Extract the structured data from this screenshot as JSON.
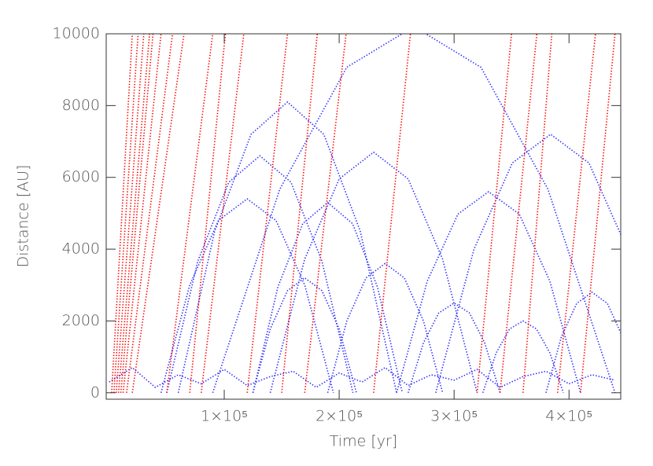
{
  "chart_data": {
    "type": "line",
    "xlabel": "Time [yr]",
    "ylabel": "Distance [AU]",
    "xlim": [
      -2700,
      445000
    ],
    "ylim": [
      -180,
      10000
    ],
    "xticks": [
      {
        "value": 100000,
        "label": "1×10⁵"
      },
      {
        "value": 200000,
        "label": "2×10⁵"
      },
      {
        "value": 300000,
        "label": "3×10⁵"
      },
      {
        "value": 400000,
        "label": "4×10⁵"
      }
    ],
    "yticks": [
      0,
      2000,
      4000,
      6000,
      8000,
      10000
    ],
    "series": [
      {
        "color": "#2a2aff",
        "x": [
          0,
          20000,
          40000,
          60000,
          80000,
          100000,
          120000,
          140000,
          160000,
          180000,
          200000,
          220000,
          240000,
          260000,
          280000,
          300000,
          320000,
          340000,
          360000,
          380000,
          400000,
          420000,
          440000
        ],
        "values": [
          300,
          700,
          150,
          500,
          250,
          650,
          200,
          450,
          600,
          150,
          550,
          300,
          700,
          200,
          500,
          350,
          650,
          150,
          450,
          600,
          250,
          500,
          350
        ]
      },
      {
        "color": "#2a2aff",
        "x": [
          60000,
          91667,
          123333,
          155000,
          186667,
          218333,
          250000
        ],
        "values": [
          0,
          4500,
          7200,
          8100,
          7200,
          4500,
          0
        ]
      },
      {
        "color": "#2a2aff",
        "x": [
          50000,
          77000,
          104000,
          131000,
          158000,
          185000,
          212000
        ],
        "values": [
          0,
          3667,
          5867,
          6600,
          5867,
          3667,
          0
        ]
      },
      {
        "color": "#2a2aff",
        "x": [
          140000,
          170000,
          200000,
          230000,
          260000,
          290000,
          320000
        ],
        "values": [
          0,
          3722,
          5956,
          6700,
          5956,
          3722,
          0
        ]
      },
      {
        "color": "#2a2aff",
        "x": [
          284000,
          317333,
          350667,
          384000,
          417333,
          450667,
          484000
        ],
        "values": [
          0,
          4000,
          6400,
          7200,
          6400,
          4000,
          0
        ]
      },
      {
        "color": "#2a2aff",
        "x": [
          250000,
          276667,
          303333,
          330000,
          356667,
          383333,
          410000
        ],
        "values": [
          0,
          3111,
          4978,
          5600,
          4978,
          3111,
          0
        ]
      },
      {
        "color": "#2a2aff",
        "x": [
          90000,
          148333,
          206667,
          265000,
          323333,
          381667,
          440000
        ],
        "values": [
          0,
          5667,
          9067,
          10200,
          9067,
          5667,
          0
        ]
      },
      {
        "color": "#2a2aff",
        "x": [
          125000,
          146667,
          168333,
          190000,
          211667,
          233333,
          255000
        ],
        "values": [
          0,
          2944,
          4711,
          5300,
          4711,
          2944,
          0
        ]
      },
      {
        "color": "#2a2aff",
        "x": [
          45000,
          70000,
          95000,
          120000,
          145000,
          170000,
          195000
        ],
        "values": [
          0,
          3000,
          4800,
          5400,
          4800,
          3000,
          0
        ]
      },
      {
        "color": "#2a2aff",
        "x": [
          260000,
          273333,
          286667,
          300000,
          313333,
          326667,
          340000
        ],
        "values": [
          0,
          1389,
          2222,
          2500,
          2222,
          1389,
          0
        ]
      },
      {
        "color": "#2a2aff",
        "x": [
          380000,
          393333,
          406667,
          420000,
          433333,
          446667,
          460000
        ],
        "values": [
          0,
          1556,
          2489,
          2800,
          2489,
          1556,
          0
        ]
      },
      {
        "color": "#2a2aff",
        "x": [
          125000,
          140000,
          155000,
          170000,
          185000,
          200000,
          215000
        ],
        "values": [
          0,
          1778,
          2844,
          3200,
          2844,
          1778,
          0
        ]
      },
      {
        "color": "#2a2aff",
        "x": [
          325000,
          336667,
          348333,
          360000,
          371667,
          383333,
          395000
        ],
        "values": [
          0,
          1111,
          1778,
          2000,
          1778,
          1111,
          0
        ]
      },
      {
        "color": "#2a2aff",
        "x": [
          190000,
          206667,
          223333,
          240000,
          256667,
          273333,
          290000
        ],
        "values": [
          0,
          2000,
          3200,
          3600,
          3200,
          2000,
          0
        ]
      },
      {
        "color": "#ff0000",
        "x": [
          2000,
          20000
        ],
        "values": [
          0,
          10000
        ]
      },
      {
        "color": "#ff0000",
        "x": [
          4000,
          25000
        ],
        "values": [
          0,
          10000
        ]
      },
      {
        "color": "#ff0000",
        "x": [
          6000,
          30000
        ],
        "values": [
          0,
          10000
        ]
      },
      {
        "color": "#ff0000",
        "x": [
          8000,
          35000
        ],
        "values": [
          0,
          10000
        ]
      },
      {
        "color": "#ff0000",
        "x": [
          10000,
          38000
        ],
        "values": [
          0,
          10000
        ]
      },
      {
        "color": "#ff0000",
        "x": [
          12000,
          45000
        ],
        "values": [
          0,
          10000
        ]
      },
      {
        "color": "#ff0000",
        "x": [
          15000,
          55000
        ],
        "values": [
          0,
          10000
        ]
      },
      {
        "color": "#ff0000",
        "x": [
          20000,
          65000
        ],
        "values": [
          0,
          10000
        ]
      },
      {
        "color": "#ff0000",
        "x": [
          50000,
          90000
        ],
        "values": [
          0,
          10000
        ]
      },
      {
        "color": "#ff0000",
        "x": [
          70000,
          101000
        ],
        "values": [
          0,
          10000
        ]
      },
      {
        "color": "#ff0000",
        "x": [
          80000,
          117000
        ],
        "values": [
          0,
          10000
        ]
      },
      {
        "color": "#ff0000",
        "x": [
          120000,
          155000
        ],
        "values": [
          0,
          10000
        ]
      },
      {
        "color": "#ff0000",
        "x": [
          150000,
          181000
        ],
        "values": [
          0,
          10000
        ]
      },
      {
        "color": "#ff0000",
        "x": [
          170000,
          206000
        ],
        "values": [
          0,
          10000
        ]
      },
      {
        "color": "#ff0000",
        "x": [
          230000,
          262000
        ],
        "values": [
          0,
          10000
        ]
      },
      {
        "color": "#ff0000",
        "x": [
          320000,
          350000
        ],
        "values": [
          0,
          10000
        ]
      },
      {
        "color": "#ff0000",
        "x": [
          340000,
          372000
        ],
        "values": [
          0,
          10000
        ]
      },
      {
        "color": "#ff0000",
        "x": [
          360000,
          385000
        ],
        "values": [
          0,
          10000
        ]
      },
      {
        "color": "#ff0000",
        "x": [
          390000,
          423000
        ],
        "values": [
          0,
          10000
        ]
      },
      {
        "color": "#ff0000",
        "x": [
          410000,
          440000
        ],
        "values": [
          0,
          10000
        ]
      }
    ]
  }
}
